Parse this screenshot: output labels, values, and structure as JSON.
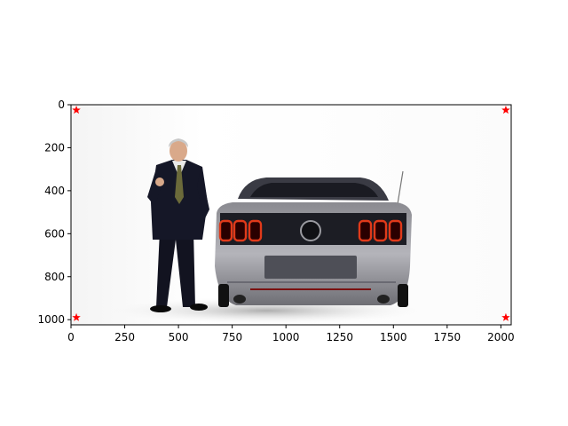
{
  "chart_data": {
    "type": "scatter",
    "title": "",
    "xlabel": "",
    "ylabel": "",
    "xlim": [
      0,
      2048
    ],
    "ylim": [
      1024,
      0
    ],
    "y_axis_inverted": true,
    "grid": false,
    "legend": "none",
    "background_image": {
      "description_icon": "photo-man-in-suit-and-rear-of-grey-mustang-car"
    },
    "xticks": [
      0,
      250,
      500,
      750,
      1000,
      1250,
      1500,
      1750,
      2000
    ],
    "yticks": [
      0,
      200,
      400,
      600,
      800,
      1000
    ],
    "series": [
      {
        "marker": "star",
        "color": "#ff0000",
        "points": [
          {
            "x": 25,
            "y": 25
          },
          {
            "x": 2023,
            "y": 25
          },
          {
            "x": 25,
            "y": 990
          },
          {
            "x": 2023,
            "y": 990
          }
        ]
      }
    ]
  }
}
